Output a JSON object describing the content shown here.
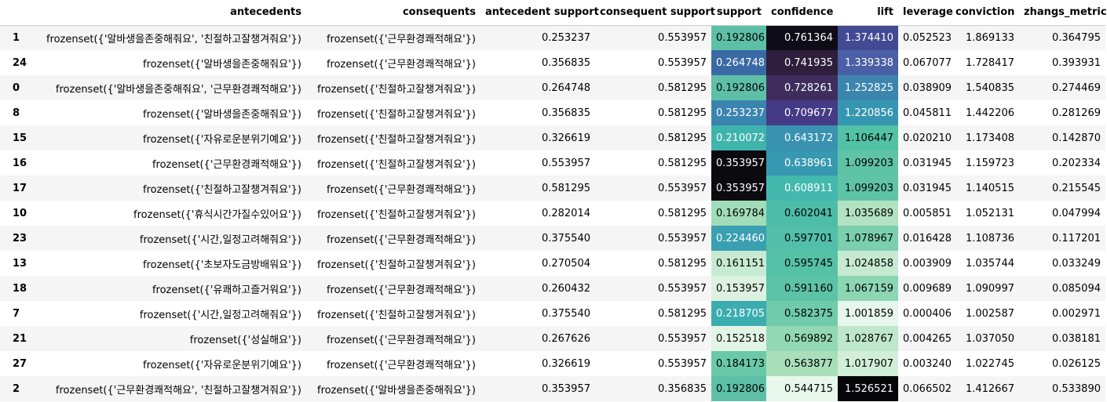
{
  "columns": [
    "antecedents",
    "consequents",
    "antecedent support",
    "consequent support",
    "support",
    "confidence",
    "lift",
    "leverage",
    "conviction",
    "zhangs_metric"
  ],
  "rows": [
    {
      "index": "1",
      "antecedents": "frozenset({'알바생을존중해줘요', '친절하고잘챙겨줘요'})",
      "consequents": "frozenset({'근무환경쾌적해요'})",
      "antecedent_support": "0.253237",
      "consequent_support": "0.553957",
      "support": "0.192806",
      "confidence": "0.761364",
      "lift": "1.374410",
      "leverage": "0.052523",
      "conviction": "1.869133",
      "zhangs_metric": "0.364795",
      "support_bg": "#5dc0a6",
      "confidence_bg": "#0e0c16",
      "lift_bg": "#424a93"
    },
    {
      "index": "24",
      "antecedents": "frozenset({'알바생을존중해줘요'})",
      "consequents": "frozenset({'근무환경쾌적해요'})",
      "antecedent_support": "0.356835",
      "consequent_support": "0.553957",
      "support": "0.264748",
      "confidence": "0.741935",
      "lift": "1.339338",
      "leverage": "0.067077",
      "conviction": "1.728417",
      "zhangs_metric": "0.393931",
      "support_bg": "#3a6aa5",
      "confidence_bg": "#2f1f3c",
      "lift_bg": "#4a5fa6"
    },
    {
      "index": "0",
      "antecedents": "frozenset({'알바생을존중해줘요', '근무환경쾌적해요'})",
      "consequents": "frozenset({'친절하고잘챙겨줘요'})",
      "antecedent_support": "0.264748",
      "consequent_support": "0.581295",
      "support": "0.192806",
      "confidence": "0.728261",
      "lift": "1.252825",
      "leverage": "0.038909",
      "conviction": "1.540835",
      "zhangs_metric": "0.274469",
      "support_bg": "#5dc0a6",
      "confidence_bg": "#3f2d5e",
      "lift_bg": "#3b85ae"
    },
    {
      "index": "8",
      "antecedents": "frozenset({'알바생을존중해줘요'})",
      "consequents": "frozenset({'친절하고잘챙겨줘요'})",
      "antecedent_support": "0.356835",
      "consequent_support": "0.581295",
      "support": "0.253237",
      "confidence": "0.709677",
      "lift": "1.220856",
      "leverage": "0.045811",
      "conviction": "1.442206",
      "zhangs_metric": "0.281269",
      "support_bg": "#3b84af",
      "confidence_bg": "#453a85",
      "lift_bg": "#3696b1"
    },
    {
      "index": "15",
      "antecedents": "frozenset({'자유로운분위기예요'})",
      "consequents": "frozenset({'친절하고잘챙겨줘요'})",
      "antecedent_support": "0.326619",
      "consequent_support": "0.581295",
      "support": "0.210072",
      "confidence": "0.643172",
      "lift": "1.106447",
      "leverage": "0.020210",
      "conviction": "1.173408",
      "zhangs_metric": "0.142870",
      "support_bg": "#3fb4ad",
      "confidence_bg": "#3892b0",
      "lift_bg": "#52c2a6"
    },
    {
      "index": "16",
      "antecedents": "frozenset({'근무환경쾌적해요'})",
      "consequents": "frozenset({'친절하고잘챙겨줘요'})",
      "antecedent_support": "0.553957",
      "consequent_support": "0.581295",
      "support": "0.353957",
      "confidence": "0.638961",
      "lift": "1.099203",
      "leverage": "0.031945",
      "conviction": "1.159723",
      "zhangs_metric": "0.202334",
      "support_bg": "#0b0b0f",
      "confidence_bg": "#3798b1",
      "lift_bg": "#5fc3a5"
    },
    {
      "index": "17",
      "antecedents": "frozenset({'친절하고잘챙겨줘요'})",
      "consequents": "frozenset({'근무환경쾌적해요'})",
      "antecedent_support": "0.581295",
      "consequent_support": "0.553957",
      "support": "0.353957",
      "confidence": "0.608911",
      "lift": "1.099203",
      "leverage": "0.031945",
      "conviction": "1.140515",
      "zhangs_metric": "0.215545",
      "support_bg": "#0b0b0f",
      "confidence_bg": "#43b8ad",
      "lift_bg": "#5fc3a5"
    },
    {
      "index": "10",
      "antecedents": "frozenset({'휴식시간가질수있어요'})",
      "consequents": "frozenset({'친절하고잘챙겨줘요'})",
      "antecedent_support": "0.282014",
      "consequent_support": "0.581295",
      "support": "0.169784",
      "confidence": "0.602041",
      "lift": "1.035689",
      "leverage": "0.005851",
      "conviction": "1.052131",
      "zhangs_metric": "0.047994",
      "support_bg": "#a1dcb8",
      "confidence_bg": "#4dbda9",
      "lift_bg": "#b3e2c3"
    },
    {
      "index": "23",
      "antecedents": "frozenset({'시간,일정고려해줘요'})",
      "consequents": "frozenset({'근무환경쾌적해요'})",
      "antecedent_support": "0.375540",
      "consequent_support": "0.553957",
      "support": "0.224460",
      "confidence": "0.597701",
      "lift": "1.078967",
      "leverage": "0.016428",
      "conviction": "1.108736",
      "zhangs_metric": "0.117201",
      "support_bg": "#399fb1",
      "confidence_bg": "#52c0a8",
      "lift_bg": "#7bcfaf"
    },
    {
      "index": "13",
      "antecedents": "frozenset({'초보자도금방배워요'})",
      "consequents": "frozenset({'친절하고잘챙겨줘요'})",
      "antecedent_support": "0.270504",
      "consequent_support": "0.581295",
      "support": "0.161151",
      "confidence": "0.595745",
      "lift": "1.024858",
      "leverage": "0.003909",
      "conviction": "1.035744",
      "zhangs_metric": "0.033249",
      "support_bg": "#c7ebd2",
      "confidence_bg": "#55c1a7",
      "lift_bg": "#c6ead1"
    },
    {
      "index": "18",
      "antecedents": "frozenset({'유쾌하고즐거워요'})",
      "consequents": "frozenset({'근무환경쾌적해요'})",
      "antecedent_support": "0.260432",
      "consequent_support": "0.553957",
      "support": "0.153957",
      "confidence": "0.591160",
      "lift": "1.067159",
      "leverage": "0.009689",
      "conviction": "1.090997",
      "zhangs_metric": "0.085094",
      "support_bg": "#dcf2e1",
      "confidence_bg": "#5cc3a6",
      "lift_bg": "#8cd6b4"
    },
    {
      "index": "7",
      "antecedents": "frozenset({'시간,일정고려해줘요'})",
      "consequents": "frozenset({'친절하고잘챙겨줘요'})",
      "antecedent_support": "0.375540",
      "consequent_support": "0.581295",
      "support": "0.218705",
      "confidence": "0.582375",
      "lift": "1.001859",
      "leverage": "0.000406",
      "conviction": "1.002587",
      "zhangs_metric": "0.002971",
      "support_bg": "#3bacaf",
      "confidence_bg": "#6fcbab",
      "lift_bg": "#e6f6ea"
    },
    {
      "index": "21",
      "antecedents": "frozenset({'성실해요'})",
      "consequents": "frozenset({'근무환경쾌적해요'})",
      "antecedent_support": "0.267626",
      "consequent_support": "0.553957",
      "support": "0.152518",
      "confidence": "0.569892",
      "lift": "1.028767",
      "leverage": "0.004265",
      "conviction": "1.037050",
      "zhangs_metric": "0.038181",
      "support_bg": "#e2f4e6",
      "confidence_bg": "#93d8b5",
      "lift_bg": "#bfe7cc"
    },
    {
      "index": "27",
      "antecedents": "frozenset({'자유로운분위기예요'})",
      "consequents": "frozenset({'근무환경쾌적해요'})",
      "antecedent_support": "0.326619",
      "consequent_support": "0.553957",
      "support": "0.184173",
      "confidence": "0.563877",
      "lift": "1.017907",
      "leverage": "0.003240",
      "conviction": "1.022745",
      "zhangs_metric": "0.026125",
      "support_bg": "#6ac9a9",
      "confidence_bg": "#a8deba",
      "lift_bg": "#d1eed8"
    },
    {
      "index": "2",
      "antecedents": "frozenset({'근무환경쾌적해요', '친절하고잘챙겨줘요'})",
      "consequents": "frozenset({'알바생을존중해줘요'})",
      "antecedent_support": "0.353957",
      "consequent_support": "0.356835",
      "support": "0.192806",
      "confidence": "0.544715",
      "lift": "1.526521",
      "leverage": "0.066502",
      "conviction": "1.412667",
      "zhangs_metric": "0.533890",
      "support_bg": "#5dc0a6",
      "confidence_bg": "#e8f7ec",
      "lift_bg": "#060507"
    }
  ]
}
